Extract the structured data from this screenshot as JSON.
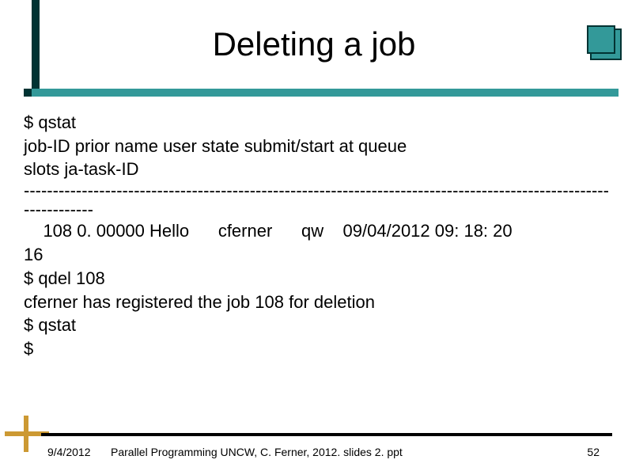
{
  "title": "Deleting a job",
  "terminal": {
    "line1": "$ qstat",
    "line2": "job-ID  prior   name       user         state submit/start at     queue",
    "line3": "slots ja-task-ID",
    "dashes": "-----------------------------------------------------------------------------------------------------------------",
    "line4": "    108 0. 00000 Hello      cferner      qw    09/04/2012 09: 18: 20",
    "line5": "16",
    "line6": "$ qdel 108",
    "line7": "cferner has registered the job 108 for deletion",
    "line8": "$ qstat",
    "line9": "$"
  },
  "footer": {
    "date": "9/4/2012",
    "center": "Parallel Programming  UNCW, C. Ferner, 2012. slides 2. ppt",
    "page": "52"
  },
  "colors": {
    "teal": "#339999",
    "dark": "#003333",
    "gold": "#cc9933"
  }
}
